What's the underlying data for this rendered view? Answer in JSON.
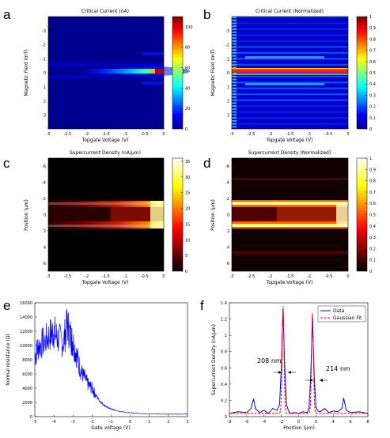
{
  "panels": [
    {
      "id": "a",
      "label": "a",
      "title": "Critical Current (nA)",
      "xlabel": "Topgate Voltage (V)",
      "ylabel": "Magnetic Field (mT)",
      "xticks": [
        "-3",
        "-2.5",
        "-2",
        "-1.5",
        "-1",
        "-0.5",
        "0"
      ],
      "yticks": [
        "-3",
        "-2",
        "-1",
        "0",
        "1",
        "2",
        "3"
      ],
      "cbticks": [
        "0",
        "20",
        "40",
        "60",
        "80",
        "100"
      ]
    },
    {
      "id": "b",
      "label": "b",
      "title": "Critical Current (Normalized)",
      "xlabel": "Topgate Voltage (V)",
      "ylabel": "Magnetic Field (mT)",
      "xticks": [
        "-3",
        "-2.5",
        "-2",
        "-1.5",
        "-1",
        "-0.5",
        "0"
      ],
      "yticks": [
        "-3",
        "-2",
        "-1",
        "0",
        "1",
        "2",
        "3"
      ],
      "cbticks": [
        "0",
        "0.1",
        "0.2",
        "0.3",
        "0.4",
        "0.5",
        "0.6",
        "0.7",
        "0.8",
        "0.9",
        "1"
      ]
    },
    {
      "id": "c",
      "label": "c",
      "title": "Supercurrent Density (nA/μm)",
      "xlabel": "Topgate Voltage (V)",
      "ylabel": "Position (μm)",
      "xticks": [
        "-3",
        "-2.5",
        "-2",
        "-1.5",
        "-1",
        "-0.5",
        "0"
      ],
      "yticks": [
        "-6",
        "-4",
        "-2",
        "0",
        "2",
        "4",
        "6"
      ],
      "cbticks": [
        "0",
        "5",
        "10",
        "15",
        "20",
        "25",
        "30",
        "35"
      ]
    },
    {
      "id": "d",
      "label": "d",
      "title": "Supercurrent Density (Normalized)",
      "xlabel": "Topgate Voltage (V)",
      "ylabel": "Position (μm)",
      "xticks": [
        "-3",
        "-2.5",
        "-2",
        "-1.5",
        "-1",
        "-0.5",
        "0"
      ],
      "yticks": [
        "-6",
        "-4",
        "-2",
        "0",
        "2",
        "4",
        "6"
      ],
      "cbticks": [
        "0",
        "0.1",
        "0.2",
        "0.3",
        "0.4",
        "0.5",
        "0.6",
        "0.7",
        "0.8",
        "0.9",
        "1"
      ]
    },
    {
      "id": "e",
      "label": "e",
      "xlabel": "Gate voltage (V)",
      "ylabel": "Normal resistance (Ω)",
      "xticks": [
        "-5",
        "-4",
        "-3",
        "-2",
        "-1",
        "0",
        "1",
        "2",
        "3"
      ],
      "yticks": [
        "0",
        "2000",
        "4000",
        "6000",
        "8000",
        "10000",
        "12000",
        "14000",
        "16000"
      ]
    },
    {
      "id": "f",
      "label": "f",
      "xlabel": "Position (μm)",
      "ylabel": "Supercurrent Density (nA/μm)",
      "xticks": [
        "-8",
        "-6",
        "-4",
        "-2",
        "0",
        "2",
        "4",
        "6",
        "8"
      ],
      "yticks": [
        "0",
        "0.2",
        "0.4",
        "0.6",
        "0.8",
        "1",
        "1.2",
        "1.4"
      ],
      "legend": [
        "Data",
        "Gaussian Fit"
      ],
      "annotations": [
        "208 nm",
        "214 nm"
      ]
    }
  ],
  "chart_data": [
    {
      "type": "heatmap",
      "panel": "a",
      "title": "Critical Current (nA)",
      "x_range": [
        -3,
        0
      ],
      "y_range": [
        -4,
        4
      ],
      "colorbar_range": [
        0,
        110
      ],
      "colormap": "jet",
      "features": [
        {
          "description": "bright band at B = 0, growing toward 0 V",
          "x": [
            -2,
            -1.5,
            -1,
            -0.5,
            -0.2,
            0
          ],
          "y_at_B0": [
            8,
            20,
            35,
            55,
            100,
            110
          ]
        }
      ]
    },
    {
      "type": "heatmap",
      "panel": "b",
      "title": "Critical Current (Normalized)",
      "x_range": [
        -3,
        0
      ],
      "y_range": [
        -4,
        4
      ],
      "colorbar_range": [
        0,
        1
      ],
      "colormap": "jet"
    },
    {
      "type": "heatmap",
      "panel": "c",
      "title": "Supercurrent Density (nA/μm)",
      "x_range": [
        -3,
        0
      ],
      "y_range": [
        -7,
        7
      ],
      "colorbar_range": [
        0,
        36
      ],
      "colormap": "hot",
      "features": [
        {
          "description": "edge channels",
          "position_um": [
            -1.8,
            1.8
          ]
        }
      ]
    },
    {
      "type": "heatmap",
      "panel": "d",
      "title": "Supercurrent Density (Normalized)",
      "x_range": [
        -3,
        0
      ],
      "y_range": [
        -7,
        7
      ],
      "colorbar_range": [
        0,
        1
      ],
      "colormap": "hot",
      "features": [
        {
          "description": "edge channels",
          "position_um": [
            -1.8,
            1.8
          ]
        }
      ]
    },
    {
      "type": "line",
      "panel": "e",
      "x_range": [
        -5,
        3
      ],
      "y_range": [
        0,
        16000
      ],
      "series": [
        {
          "x": [
            -5,
            -4.8,
            -4.5,
            -4.2,
            -4.0,
            -3.8,
            -3.5,
            -3.3,
            -3.1,
            -3.0,
            -2.8,
            -2.6,
            -2.4,
            -2.2,
            -2.0,
            -1.8,
            -1.6,
            -1.4,
            -1.2,
            -1.0,
            -0.8,
            -0.5,
            0,
            0.5,
            1,
            2,
            3
          ],
          "y": [
            8500,
            10000,
            10500,
            11500,
            12000,
            11000,
            10500,
            13000,
            11000,
            10500,
            8500,
            6500,
            5500,
            4500,
            4000,
            3000,
            2200,
            1700,
            1300,
            1100,
            900,
            700,
            550,
            450,
            400,
            350,
            380
          ]
        }
      ]
    },
    {
      "type": "line",
      "panel": "f",
      "x_range": [
        -8,
        8
      ],
      "y_range": [
        0,
        1.4
      ],
      "series": [
        {
          "name": "Data",
          "x": [
            -8,
            -7,
            -6,
            -5.5,
            -5.2,
            -5,
            -4.5,
            -4,
            -3.5,
            -3,
            -2.5,
            -2.2,
            -2,
            -1.8,
            -1.6,
            -1.4,
            -1.2,
            -1,
            -0.5,
            0,
            0.5,
            1,
            1.2,
            1.4,
            1.6,
            1.8,
            2,
            2.2,
            2.5,
            3,
            3.5,
            4,
            4.5,
            5,
            5.2,
            5.5,
            6,
            7,
            8
          ],
          "y": [
            0.04,
            0.06,
            0.05,
            0.1,
            0.22,
            0.1,
            0.05,
            0.08,
            0.04,
            0.1,
            0.08,
            0.15,
            0.6,
            1.32,
            0.6,
            0.15,
            0.08,
            0.04,
            0.05,
            0.04,
            0.06,
            0.05,
            0.1,
            0.5,
            1.23,
            0.5,
            0.12,
            0.07,
            0.06,
            0.1,
            0.05,
            0.07,
            0.06,
            0.1,
            0.23,
            0.08,
            0.05,
            0.06,
            0.04
          ]
        },
        {
          "name": "Gaussian Fit",
          "peaks": [
            {
              "center": -1.8,
              "amplitude": 1.32,
              "fwhm_nm": 208
            },
            {
              "center": 1.6,
              "amplitude": 1.23,
              "fwhm_nm": 214
            }
          ]
        }
      ]
    }
  ]
}
